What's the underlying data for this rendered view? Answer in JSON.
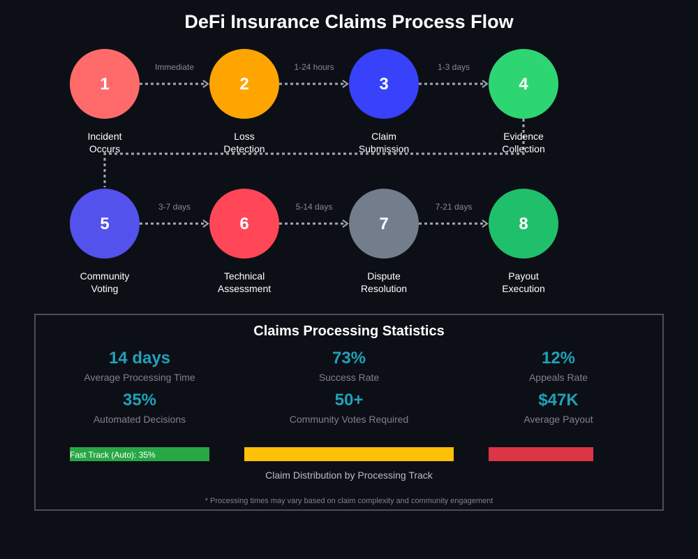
{
  "title": "DeFi Insurance Claims Process Flow",
  "steps": [
    {
      "number": "1",
      "label_lines": [
        "Incident",
        "Occurs"
      ],
      "color": "#ff6b6b"
    },
    {
      "number": "2",
      "label_lines": [
        "Loss",
        "Detection"
      ],
      "color": "#ffa502"
    },
    {
      "number": "3",
      "label_lines": [
        "Claim",
        "Submission"
      ],
      "color": "#3742fa"
    },
    {
      "number": "4",
      "label_lines": [
        "Evidence",
        "Collection"
      ],
      "color": "#2ed573"
    },
    {
      "number": "5",
      "label_lines": [
        "Community",
        "Voting"
      ],
      "color": "#5352ed"
    },
    {
      "number": "6",
      "label_lines": [
        "Technical",
        "Assessment"
      ],
      "color": "#ff4757"
    },
    {
      "number": "7",
      "label_lines": [
        "Dispute",
        "Resolution"
      ],
      "color": "#747d8c"
    },
    {
      "number": "8",
      "label_lines": [
        "Payout",
        "Execution"
      ],
      "color": "#20bf6b"
    }
  ],
  "transitions": [
    {
      "from": "1",
      "to": "2",
      "label": "Immediate"
    },
    {
      "from": "2",
      "to": "3",
      "label": "1-24 hours"
    },
    {
      "from": "3",
      "to": "4",
      "label": "1-3 days"
    },
    {
      "from": "4",
      "to": "5",
      "label": ""
    },
    {
      "from": "5",
      "to": "6",
      "label": "3-7 days"
    },
    {
      "from": "6",
      "to": "7",
      "label": "5-14 days"
    },
    {
      "from": "7",
      "to": "8",
      "label": "7-21 days"
    }
  ],
  "stats": {
    "title": "Claims Processing Statistics",
    "items": [
      {
        "value": "14 days",
        "label": "Average Processing Time"
      },
      {
        "value": "73%",
        "label": "Success Rate"
      },
      {
        "value": "12%",
        "label": "Appeals Rate"
      },
      {
        "value": "35%",
        "label": "Automated Decisions"
      },
      {
        "value": "50+",
        "label": "Community Votes Required"
      },
      {
        "value": "$47K",
        "label": "Average Payout"
      }
    ],
    "tracks": [
      {
        "label": "Fast Track (Auto): 35%",
        "color": "#28a745"
      },
      {
        "label": "",
        "color": "#ffc107"
      },
      {
        "label": "",
        "color": "#dc3545"
      }
    ],
    "distribution_caption": "Claim Distribution by Processing Track",
    "footnote": "* Processing times may vary based on claim complexity and community engagement"
  }
}
